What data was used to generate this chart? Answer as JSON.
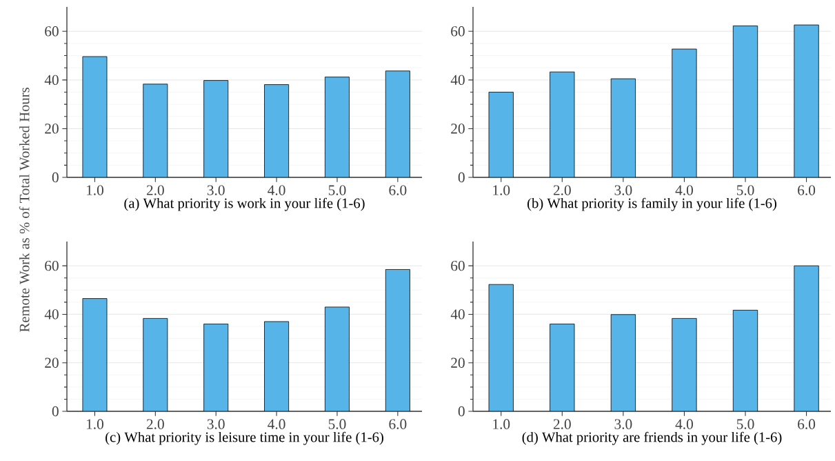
{
  "chart_data": [
    {
      "type": "bar",
      "xlabel": "(a) What priority is work in your life (1-6)",
      "ylabel": "Remote Work as % of Total Worked Hours",
      "categories": [
        "1.0",
        "2.0",
        "3.0",
        "4.0",
        "5.0",
        "6.0"
      ],
      "values": [
        49.6,
        38.3,
        39.8,
        38.1,
        41.2,
        43.7
      ],
      "color": "#56b4e9",
      "ylim": [
        0,
        70
      ],
      "yticks": [
        0,
        20,
        40,
        60
      ],
      "grid": "y"
    },
    {
      "type": "bar",
      "xlabel": "(b) What priority is family in your life (1-6)",
      "categories": [
        "1.0",
        "2.0",
        "3.0",
        "4.0",
        "5.0",
        "6.0"
      ],
      "values": [
        35.0,
        43.3,
        40.5,
        52.7,
        62.2,
        62.6
      ],
      "color": "#56b4e9",
      "ylim": [
        0,
        70
      ],
      "yticks": [
        0,
        20,
        40,
        60
      ],
      "grid": "y"
    },
    {
      "type": "bar",
      "xlabel": "(c) What priority is leisure time in your life (1-6)",
      "categories": [
        "1.0",
        "2.0",
        "3.0",
        "4.0",
        "5.0",
        "6.0"
      ],
      "values": [
        46.5,
        38.3,
        36.0,
        37.0,
        43.0,
        58.5
      ],
      "color": "#56b4e9",
      "ylim": [
        0,
        70
      ],
      "yticks": [
        0,
        20,
        40,
        60
      ],
      "grid": "y"
    },
    {
      "type": "bar",
      "xlabel": "(d) What priority are friends in your life (1-6)",
      "categories": [
        "1.0",
        "2.0",
        "3.0",
        "4.0",
        "5.0",
        "6.0"
      ],
      "values": [
        52.3,
        36.0,
        39.9,
        38.3,
        41.7,
        60.0
      ],
      "color": "#56b4e9",
      "ylim": [
        0,
        70
      ],
      "yticks": [
        0,
        20,
        40,
        60
      ],
      "grid": "y"
    }
  ]
}
